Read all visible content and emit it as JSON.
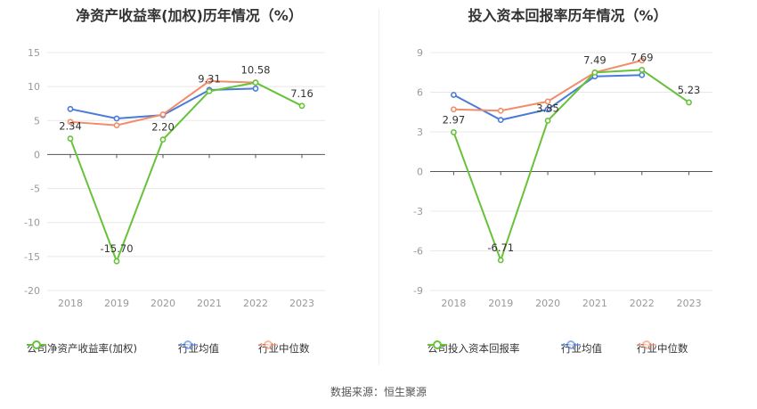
{
  "source": "数据来源：恒生聚源",
  "colors": {
    "company": "#67c23a",
    "avg": "#4a7bd8",
    "median": "#f28c6a"
  },
  "chart_data": [
    {
      "type": "line",
      "title": "净资产收益率(加权)历年情况（%）",
      "x": [
        "2018",
        "2019",
        "2020",
        "2021",
        "2022",
        "2023"
      ],
      "ylim": [
        -20,
        15
      ],
      "yticks": [
        15,
        10,
        5,
        0,
        -5,
        -10,
        -15,
        -20
      ],
      "legend_position": "bottom",
      "series": [
        {
          "name": "公司净资产收益率(加权)",
          "values": [
            2.34,
            -15.7,
            2.2,
            9.31,
            10.58,
            7.16
          ],
          "labels": [
            "2.34",
            "-15.70",
            "2.20",
            "9.31",
            "10.58",
            "7.16"
          ]
        },
        {
          "name": "行业均值",
          "values": [
            6.7,
            5.3,
            5.8,
            9.5,
            9.7,
            null
          ]
        },
        {
          "name": "行业中位数",
          "values": [
            4.8,
            4.3,
            5.9,
            10.8,
            10.6,
            null
          ]
        }
      ]
    },
    {
      "type": "line",
      "title": "投入资本回报率历年情况（%）",
      "x": [
        "2018",
        "2019",
        "2020",
        "2021",
        "2022",
        "2023"
      ],
      "ylim": [
        -9,
        9
      ],
      "yticks": [
        9,
        6,
        3,
        0,
        -3,
        -6,
        -9
      ],
      "legend_position": "bottom",
      "series": [
        {
          "name": "公司投入资本回报率",
          "values": [
            2.97,
            -6.71,
            3.85,
            7.49,
            7.69,
            5.23
          ],
          "labels": [
            "2.97",
            "-6.71",
            "3.85",
            "7.49",
            "7.69",
            "5.23"
          ]
        },
        {
          "name": "行业均值",
          "values": [
            5.8,
            3.9,
            4.7,
            7.2,
            7.3,
            null
          ]
        },
        {
          "name": "行业中位数",
          "values": [
            4.7,
            4.6,
            5.3,
            7.5,
            8.4,
            null
          ]
        }
      ]
    }
  ]
}
